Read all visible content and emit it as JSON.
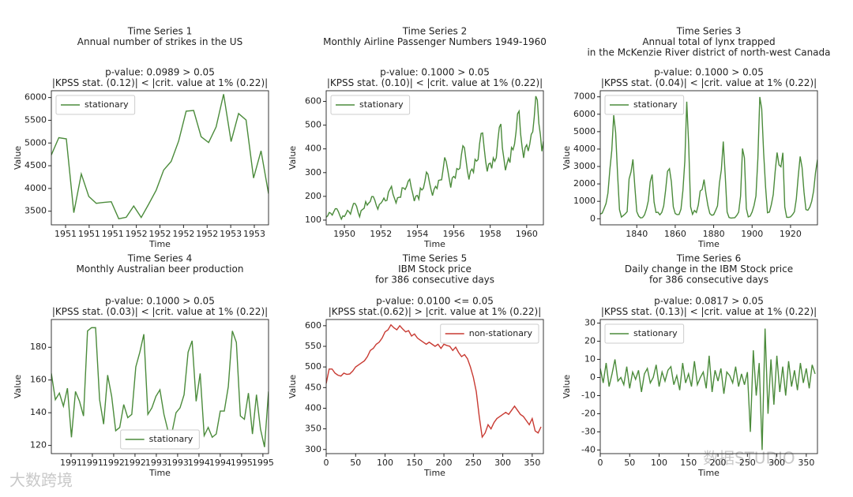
{
  "chart_data": [
    {
      "type": "line",
      "title": "Time Series 1",
      "subtitle": [
        "Annual number of strikes in the US"
      ],
      "annotations": [
        "p-value: 0.0989 > 0.05",
        "|KPSS stat. (0.12)| < |crit. value at 1% (0.22)|"
      ],
      "xlabel": "Time",
      "ylabel": "Value",
      "legend": "upper left",
      "grid": false,
      "xlim": [
        0,
        29
      ],
      "xticks": [
        {
          "value": 1.9,
          "label": "1951"
        },
        {
          "value": 5.05,
          "label": "1951"
        },
        {
          "value": 8.2,
          "label": "1951"
        },
        {
          "value": 11.35,
          "label": "1952"
        },
        {
          "value": 14.5,
          "label": "1952"
        },
        {
          "value": 17.65,
          "label": "1952"
        },
        {
          "value": 20.8,
          "label": "1952"
        },
        {
          "value": 23.95,
          "label": "1953"
        },
        {
          "value": 27.1,
          "label": "1953"
        }
      ],
      "ylim": [
        3200,
        6150
      ],
      "yticks": [
        3500,
        4000,
        4500,
        5000,
        5500,
        6000
      ],
      "series": [
        {
          "name": "stationary",
          "color": "#4b8b3b",
          "values": [
            4737,
            5117,
            5091,
            3468,
            4320,
            3825,
            3673,
            3694,
            3708,
            3333,
            3367,
            3614,
            3362,
            3655,
            3963,
            4405,
            4595,
            5045,
            5700,
            5716,
            5138,
            5010,
            5353,
            6074,
            5031,
            5648,
            5506,
            4230,
            4827,
            3885
          ]
        }
      ]
    },
    {
      "type": "line",
      "title": "Time Series 2",
      "subtitle": [
        "Monthly Airline Passenger Numbers 1949-1960"
      ],
      "annotations": [
        "p-value: 0.1000 > 0.05",
        "|KPSS stat. (0.10)| < |crit. value at 1% (0.22)|"
      ],
      "xlabel": "Time",
      "ylabel": "Value",
      "legend": "upper left",
      "grid": false,
      "xlim": [
        0,
        143
      ],
      "xticks": [
        {
          "value": 12,
          "label": "1950"
        },
        {
          "value": 36,
          "label": "1952"
        },
        {
          "value": 60,
          "label": "1954"
        },
        {
          "value": 84,
          "label": "1956"
        },
        {
          "value": 108,
          "label": "1958"
        },
        {
          "value": 132,
          "label": "1960"
        }
      ],
      "ylim": [
        80,
        645
      ],
      "yticks": [
        100,
        200,
        300,
        400,
        500,
        600
      ],
      "series": [
        {
          "name": "stationary",
          "color": "#4b8b3b",
          "values": [
            112,
            118,
            132,
            129,
            121,
            135,
            148,
            148,
            136,
            119,
            104,
            118,
            115,
            126,
            141,
            135,
            125,
            149,
            170,
            170,
            158,
            133,
            114,
            140,
            145,
            150,
            178,
            163,
            172,
            178,
            199,
            199,
            184,
            162,
            146,
            166,
            171,
            180,
            193,
            181,
            183,
            218,
            230,
            242,
            209,
            191,
            172,
            194,
            196,
            196,
            236,
            235,
            229,
            243,
            264,
            272,
            237,
            211,
            180,
            201,
            204,
            188,
            235,
            227,
            234,
            264,
            302,
            293,
            259,
            229,
            203,
            229,
            242,
            233,
            267,
            269,
            270,
            315,
            364,
            347,
            312,
            274,
            237,
            278,
            284,
            277,
            317,
            313,
            318,
            374,
            413,
            405,
            355,
            306,
            271,
            306,
            315,
            301,
            356,
            348,
            355,
            422,
            465,
            467,
            404,
            347,
            305,
            336,
            340,
            318,
            362,
            348,
            363,
            435,
            491,
            505,
            404,
            359,
            310,
            337,
            360,
            342,
            406,
            396,
            420,
            472,
            548,
            559,
            463,
            407,
            362,
            405,
            417,
            391,
            419,
            461,
            472,
            535,
            622,
            606,
            508,
            461,
            390,
            432
          ]
        }
      ]
    },
    {
      "type": "line",
      "title": "Time Series 3",
      "subtitle": [
        "Annual total of lynx trapped",
        "in the McKenzie River district of north-west Canada"
      ],
      "annotations": [
        "p-value: 0.1000 > 0.05",
        "|KPSS stat. (0.04)| < |crit. value at 1% (0.22)|"
      ],
      "xlabel": "Time",
      "ylabel": "Value",
      "legend": "upper left",
      "grid": false,
      "xlim": [
        0,
        113
      ],
      "xticks": [
        {
          "value": 19,
          "label": "1840"
        },
        {
          "value": 39,
          "label": "1860"
        },
        {
          "value": 59,
          "label": "1880"
        },
        {
          "value": 79,
          "label": "1900"
        },
        {
          "value": 99,
          "label": "1920"
        }
      ],
      "ylim": [
        -350,
        7350
      ],
      "yticks": [
        0,
        1000,
        2000,
        3000,
        4000,
        5000,
        6000,
        7000
      ],
      "series": [
        {
          "name": "stationary",
          "color": "#4b8b3b",
          "values": [
            269,
            321,
            585,
            871,
            1475,
            2821,
            3928,
            5943,
            4950,
            2577,
            523,
            98,
            184,
            279,
            409,
            2285,
            2685,
            3409,
            1824,
            409,
            151,
            45,
            68,
            213,
            546,
            1033,
            2129,
            2536,
            957,
            361,
            377,
            225,
            360,
            731,
            1638,
            2725,
            2871,
            2119,
            684,
            299,
            236,
            245,
            552,
            1623,
            3311,
            6721,
            4254,
            687,
            255,
            473,
            358,
            784,
            1594,
            1676,
            2251,
            1426,
            756,
            299,
            201,
            229,
            469,
            736,
            2042,
            2811,
            4431,
            2511,
            389,
            73,
            39,
            49,
            59,
            188,
            377,
            1292,
            4031,
            3495,
            587,
            105,
            153,
            387,
            758,
            1307,
            3465,
            6991,
            6313,
            3794,
            1836,
            345,
            382,
            808,
            1388,
            2713,
            3800,
            3091,
            2985,
            3790,
            674,
            81,
            80,
            108,
            229,
            399,
            1132,
            2432,
            3574,
            2935,
            1537,
            529,
            485,
            662,
            1000,
            1590,
            2657,
            3396
          ]
        }
      ]
    },
    {
      "type": "line",
      "title": "Time Series 4",
      "subtitle": [
        "Monthly Australian beer production"
      ],
      "annotations": [
        "p-value: 0.1000 > 0.05",
        "|KPSS stat. (0.03)| < |crit. value at 1% (0.22)|"
      ],
      "xlabel": "Time",
      "ylabel": "Value",
      "legend": "lower center",
      "grid": false,
      "xlim": [
        0,
        54
      ],
      "xticks": [
        {
          "value": 4.9,
          "label": "1991"
        },
        {
          "value": 10.2,
          "label": "1991"
        },
        {
          "value": 15.5,
          "label": "1992"
        },
        {
          "value": 20.8,
          "label": "1992"
        },
        {
          "value": 26.1,
          "label": "1993"
        },
        {
          "value": 31.4,
          "label": "1993"
        },
        {
          "value": 36.7,
          "label": "1994"
        },
        {
          "value": 42.0,
          "label": "1994"
        },
        {
          "value": 47.3,
          "label": "1995"
        },
        {
          "value": 52.6,
          "label": "1995"
        }
      ],
      "ylim": [
        115,
        197
      ],
      "yticks": [
        120,
        140,
        160,
        180
      ],
      "series": [
        {
          "name": "stationary",
          "color": "#4b8b3b",
          "values": [
            164,
            148,
            152,
            144,
            155,
            125,
            153,
            147,
            138,
            190,
            192,
            192,
            148,
            133,
            163,
            150,
            129,
            131,
            145,
            137,
            139,
            168,
            177,
            188,
            139,
            143,
            150,
            154,
            139,
            129,
            128,
            140,
            143,
            151,
            177,
            184,
            147,
            164,
            126,
            131,
            125,
            127,
            141,
            141,
            156,
            190,
            183,
            138,
            136,
            152,
            127,
            151,
            130,
            119,
            153
          ]
        }
      ]
    },
    {
      "type": "line",
      "title": "Time Series 5",
      "subtitle": [
        "IBM Stock price",
        "for 386 consecutive days"
      ],
      "annotations": [
        "p-value: 0.0100 <= 0.05",
        "|KPSS stat.(0.62)| > |crit. value at 1% (0.22)|"
      ],
      "xlabel": "Time",
      "ylabel": "Value",
      "legend": "upper right",
      "grid": false,
      "xlim": [
        0,
        369
      ],
      "xticks": [
        0,
        50,
        100,
        150,
        200,
        250,
        300,
        350
      ],
      "ylim": [
        290,
        615
      ],
      "yticks": [
        300,
        350,
        400,
        450,
        500,
        550,
        600
      ],
      "x": [
        0,
        5,
        10,
        15,
        20,
        25,
        30,
        35,
        40,
        45,
        50,
        55,
        60,
        65,
        70,
        75,
        80,
        85,
        90,
        95,
        100,
        105,
        110,
        115,
        120,
        125,
        130,
        135,
        140,
        145,
        150,
        155,
        160,
        165,
        170,
        175,
        180,
        185,
        190,
        195,
        200,
        205,
        210,
        215,
        220,
        225,
        230,
        235,
        240,
        245,
        250,
        255,
        260,
        265,
        270,
        275,
        280,
        285,
        290,
        295,
        300,
        305,
        310,
        315,
        320,
        325,
        330,
        335,
        340,
        345,
        350,
        355,
        360,
        365
      ],
      "series": [
        {
          "name": "non-stationary",
          "color": "#c83a32",
          "values": [
            460,
            495,
            495,
            485,
            480,
            478,
            485,
            482,
            483,
            490,
            500,
            505,
            510,
            515,
            525,
            540,
            545,
            555,
            560,
            570,
            585,
            590,
            602,
            595,
            590,
            600,
            592,
            585,
            588,
            575,
            580,
            570,
            565,
            560,
            555,
            560,
            555,
            550,
            555,
            545,
            555,
            552,
            550,
            540,
            548,
            535,
            525,
            530,
            520,
            500,
            475,
            440,
            380,
            330,
            340,
            360,
            350,
            365,
            375,
            380,
            385,
            390,
            385,
            395,
            405,
            395,
            385,
            380,
            370,
            360,
            375,
            345,
            340,
            355
          ]
        }
      ]
    },
    {
      "type": "line",
      "title": "Time Series 6",
      "subtitle": [
        "Daily change in the IBM Stock price",
        "for 386 consecutive days"
      ],
      "annotations": [
        "p-value: 0.0817 > 0.05",
        "|KPSS stat. (0.13)| < |crit. value at 1% (0.22)|"
      ],
      "xlabel": "Time",
      "ylabel": "Value",
      "legend": "upper left",
      "grid": false,
      "xlim": [
        0,
        369
      ],
      "xticks": [
        0,
        50,
        100,
        150,
        200,
        250,
        300,
        350
      ],
      "ylim": [
        -42,
        32
      ],
      "yticks": [
        -40,
        -30,
        -20,
        -10,
        0,
        10,
        20,
        30
      ],
      "x": [
        0,
        5,
        10,
        15,
        20,
        25,
        30,
        35,
        40,
        45,
        50,
        55,
        60,
        65,
        70,
        75,
        80,
        85,
        90,
        95,
        100,
        105,
        110,
        115,
        120,
        125,
        130,
        135,
        140,
        145,
        150,
        155,
        160,
        165,
        170,
        175,
        180,
        185,
        190,
        195,
        200,
        205,
        210,
        215,
        220,
        225,
        230,
        235,
        240,
        245,
        250,
        255,
        260,
        265,
        270,
        275,
        280,
        285,
        290,
        295,
        300,
        305,
        310,
        315,
        320,
        325,
        330,
        335,
        340,
        345,
        350,
        355,
        360,
        365
      ],
      "series": [
        {
          "name": "stationary",
          "color": "#4b8b3b",
          "values": [
            5,
            -3,
            8,
            -5,
            2,
            10,
            -2,
            0,
            -4,
            6,
            -6,
            3,
            -1,
            4,
            -8,
            2,
            5,
            -3,
            0,
            7,
            -5,
            3,
            -2,
            4,
            6,
            -4,
            1,
            -7,
            8,
            -3,
            2,
            -5,
            9,
            -4,
            0,
            3,
            -6,
            12,
            -8,
            4,
            -2,
            5,
            -9,
            3,
            1,
            -3,
            6,
            -5,
            2,
            -4,
            3,
            -30,
            15,
            -10,
            8,
            -40,
            27,
            -20,
            10,
            -15,
            12,
            -8,
            6,
            -10,
            9,
            -5,
            4,
            -7,
            8,
            -3,
            5,
            -6,
            7,
            2
          ]
        }
      ]
    }
  ],
  "watermarks": [
    "大数跨境",
    "数据STUDIO"
  ]
}
